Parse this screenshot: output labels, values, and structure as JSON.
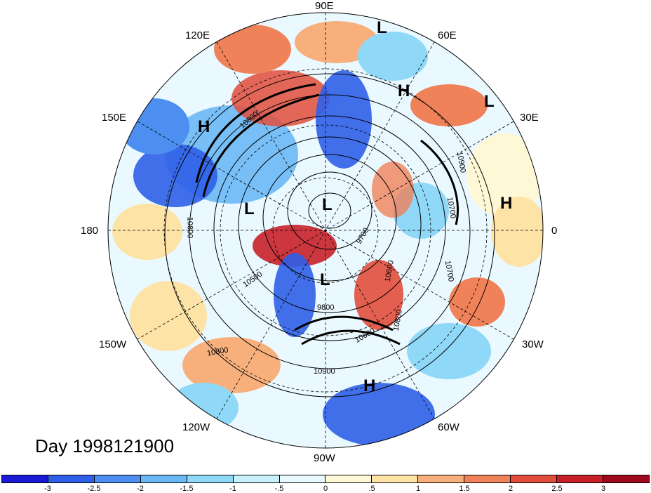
{
  "title": "Day 1998121900",
  "longitude_labels": [
    {
      "text": "90E"
    },
    {
      "text": "60E"
    },
    {
      "text": "30E"
    },
    {
      "text": "0"
    },
    {
      "text": "30W"
    },
    {
      "text": "60W"
    },
    {
      "text": "90W"
    },
    {
      "text": "120W"
    },
    {
      "text": "150W"
    },
    {
      "text": "180"
    },
    {
      "text": "150E"
    },
    {
      "text": "120E"
    }
  ],
  "pressure_centers": [
    {
      "type": "L"
    },
    {
      "type": "H"
    },
    {
      "type": "L"
    },
    {
      "type": "H"
    },
    {
      "type": "H"
    },
    {
      "type": "L"
    },
    {
      "type": "L"
    },
    {
      "type": "L"
    },
    {
      "type": "H"
    }
  ],
  "contour_labels": [
    "10800",
    "10900",
    "10700",
    "9700",
    "10600",
    "10500",
    "10800",
    "10700",
    "10900",
    "10800",
    "9800",
    "10800",
    "10600"
  ],
  "colorbar": {
    "colors": [
      "#1a1ad6",
      "#2f5fe8",
      "#4d8ff0",
      "#6ab8f5",
      "#8fd8f8",
      "#c8f0fb",
      "#e6faff",
      "#fff8d6",
      "#fde4a6",
      "#f7b07c",
      "#f0825a",
      "#e24e3c",
      "#c8202a",
      "#a0081c"
    ],
    "ticks": [
      "-3",
      "-2.5",
      "-2",
      "-1.5",
      "-1",
      "-.5",
      "0",
      ".5",
      "1",
      "1.5",
      "2",
      "2.5",
      "3"
    ]
  }
}
